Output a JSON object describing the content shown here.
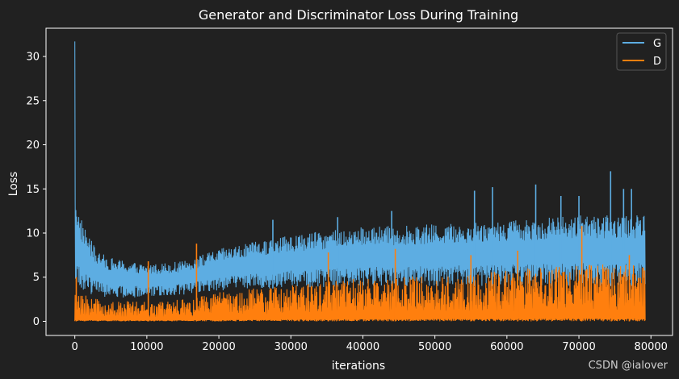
{
  "colors": {
    "background": "#212121",
    "axes": "#ffffff",
    "series_g": "#5dade2",
    "series_d": "#ff7f0e"
  },
  "chart_data": {
    "type": "line",
    "title": "Generator and Discriminator Loss During Training",
    "xlabel": "iterations",
    "ylabel": "Loss",
    "xlim": [
      -4000,
      83000
    ],
    "ylim": [
      -1.6,
      33.2
    ],
    "xticks": [
      0,
      10000,
      20000,
      30000,
      40000,
      50000,
      60000,
      70000,
      80000
    ],
    "yticks": [
      0,
      5,
      10,
      15,
      20,
      25,
      30
    ],
    "legend_position": "top-right",
    "grid": false,
    "series": [
      {
        "name": "G",
        "color": "#5dade2",
        "x_range": [
          0,
          79200
        ],
        "initial_peak": 31.7,
        "envelope": {
          "x": [
            0,
            500,
            1500,
            3000,
            5000,
            8000,
            10000,
            15000,
            20000,
            30000,
            40000,
            50000,
            60000,
            70000,
            79200
          ],
          "low": [
            4.0,
            3.5,
            3.2,
            2.9,
            2.7,
            2.7,
            2.8,
            3.0,
            3.5,
            3.8,
            4.0,
            4.0,
            4.0,
            4.0,
            4.0
          ],
          "high": [
            16.0,
            12.5,
            10.5,
            8.0,
            7.2,
            6.7,
            6.5,
            6.8,
            8.2,
            9.8,
            10.7,
            11.0,
            11.5,
            12.0,
            12.0
          ]
        },
        "spikes": [
          {
            "x": 27500,
            "y": 11.5
          },
          {
            "x": 36500,
            "y": 11.8
          },
          {
            "x": 44000,
            "y": 12.5
          },
          {
            "x": 55500,
            "y": 14.8
          },
          {
            "x": 58000,
            "y": 15.2
          },
          {
            "x": 64000,
            "y": 15.5
          },
          {
            "x": 67500,
            "y": 14.2
          },
          {
            "x": 70000,
            "y": 14.2
          },
          {
            "x": 74400,
            "y": 17.0
          },
          {
            "x": 76200,
            "y": 15.0
          },
          {
            "x": 77300,
            "y": 15.0
          }
        ]
      },
      {
        "name": "D",
        "color": "#ff7f0e",
        "x_range": [
          0,
          79200
        ],
        "envelope": {
          "x": [
            0,
            1000,
            5000,
            10000,
            15000,
            20000,
            30000,
            40000,
            50000,
            60000,
            70000,
            79200
          ],
          "low": [
            0.0,
            0.0,
            0.0,
            0.0,
            0.0,
            0.0,
            0.0,
            0.0,
            0.0,
            0.0,
            0.0,
            0.0
          ],
          "high": [
            3.5,
            3.0,
            2.4,
            2.2,
            2.5,
            3.3,
            4.2,
            5.0,
            5.2,
            5.8,
            6.5,
            6.5
          ]
        },
        "spikes": [
          {
            "x": 200,
            "y": 5.0
          },
          {
            "x": 10200,
            "y": 6.8
          },
          {
            "x": 16900,
            "y": 8.8
          },
          {
            "x": 35200,
            "y": 7.8
          },
          {
            "x": 44500,
            "y": 8.2
          },
          {
            "x": 55000,
            "y": 7.5
          },
          {
            "x": 61500,
            "y": 8.0
          },
          {
            "x": 70400,
            "y": 10.8
          },
          {
            "x": 77000,
            "y": 7.5
          }
        ]
      }
    ]
  },
  "watermark": "CSDN @ialover"
}
